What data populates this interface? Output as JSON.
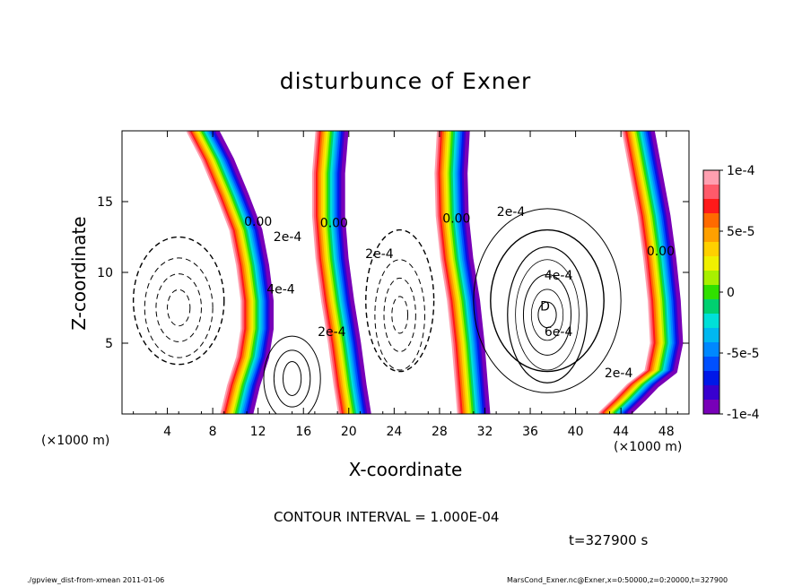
{
  "chart_data": {
    "type": "contour",
    "title": "disturbunce of Exner",
    "xlabel": "X-coordinate",
    "ylabel": "Z-coordinate",
    "x_unit_left": "(×1000 m)",
    "x_unit_right": "(×1000 m)",
    "xlim": [
      0,
      50
    ],
    "ylim": [
      0,
      20
    ],
    "x_ticks": [
      "4",
      "8",
      "12",
      "16",
      "20",
      "24",
      "28",
      "32",
      "36",
      "40",
      "44",
      "48"
    ],
    "y_ticks": [
      "5",
      "10",
      "15"
    ],
    "colorbar": {
      "range": [
        -0.0001,
        0.0001
      ],
      "tick_labels": [
        "1e-4",
        "5e-5",
        "0",
        "-5e-5",
        "-1e-4"
      ],
      "colors": [
        "#ff9fb0",
        "#ff5a6a",
        "#ff1a1a",
        "#ff6a00",
        "#ffa000",
        "#ffd000",
        "#f0f000",
        "#a8f000",
        "#30e000",
        "#00d070",
        "#00e0d8",
        "#00b8f0",
        "#0088ff",
        "#0050ff",
        "#0018e8",
        "#3800d0",
        "#7800b8"
      ]
    },
    "contour_labels": [
      {
        "text": "0.00",
        "x": 12.0,
        "z": 13.3
      },
      {
        "text": "0.00",
        "x": 18.7,
        "z": 13.2
      },
      {
        "text": "0.00",
        "x": 29.5,
        "z": 13.5
      },
      {
        "text": "0.00",
        "x": 47.5,
        "z": 11.2
      },
      {
        "text": "2e-4",
        "x": 14.6,
        "z": 12.2
      },
      {
        "text": "2e-4",
        "x": 22.7,
        "z": 11.0
      },
      {
        "text": "2e-4",
        "x": 34.3,
        "z": 14.0
      },
      {
        "text": "2e-4",
        "x": 18.5,
        "z": 5.5
      },
      {
        "text": "2e-4",
        "x": 43.8,
        "z": 2.6
      },
      {
        "text": "4e-4",
        "x": 14.0,
        "z": 8.5
      },
      {
        "text": "4e-4",
        "x": 38.5,
        "z": 9.5
      },
      {
        "text": "6e-4",
        "x": 38.5,
        "z": 5.5
      },
      {
        "text": "D",
        "x": 37.3,
        "z": 7.3
      }
    ],
    "annotations": {
      "contour_interval": "CONTOUR INTERVAL = 1.000E-04",
      "time": "t=327900 s"
    }
  },
  "footer": {
    "left": "./gpview_dist-from-xmean  2011-01-06",
    "right": "MarsCond_Exner.nc@Exner,x=0:50000,z=0:20000,t=327900"
  }
}
